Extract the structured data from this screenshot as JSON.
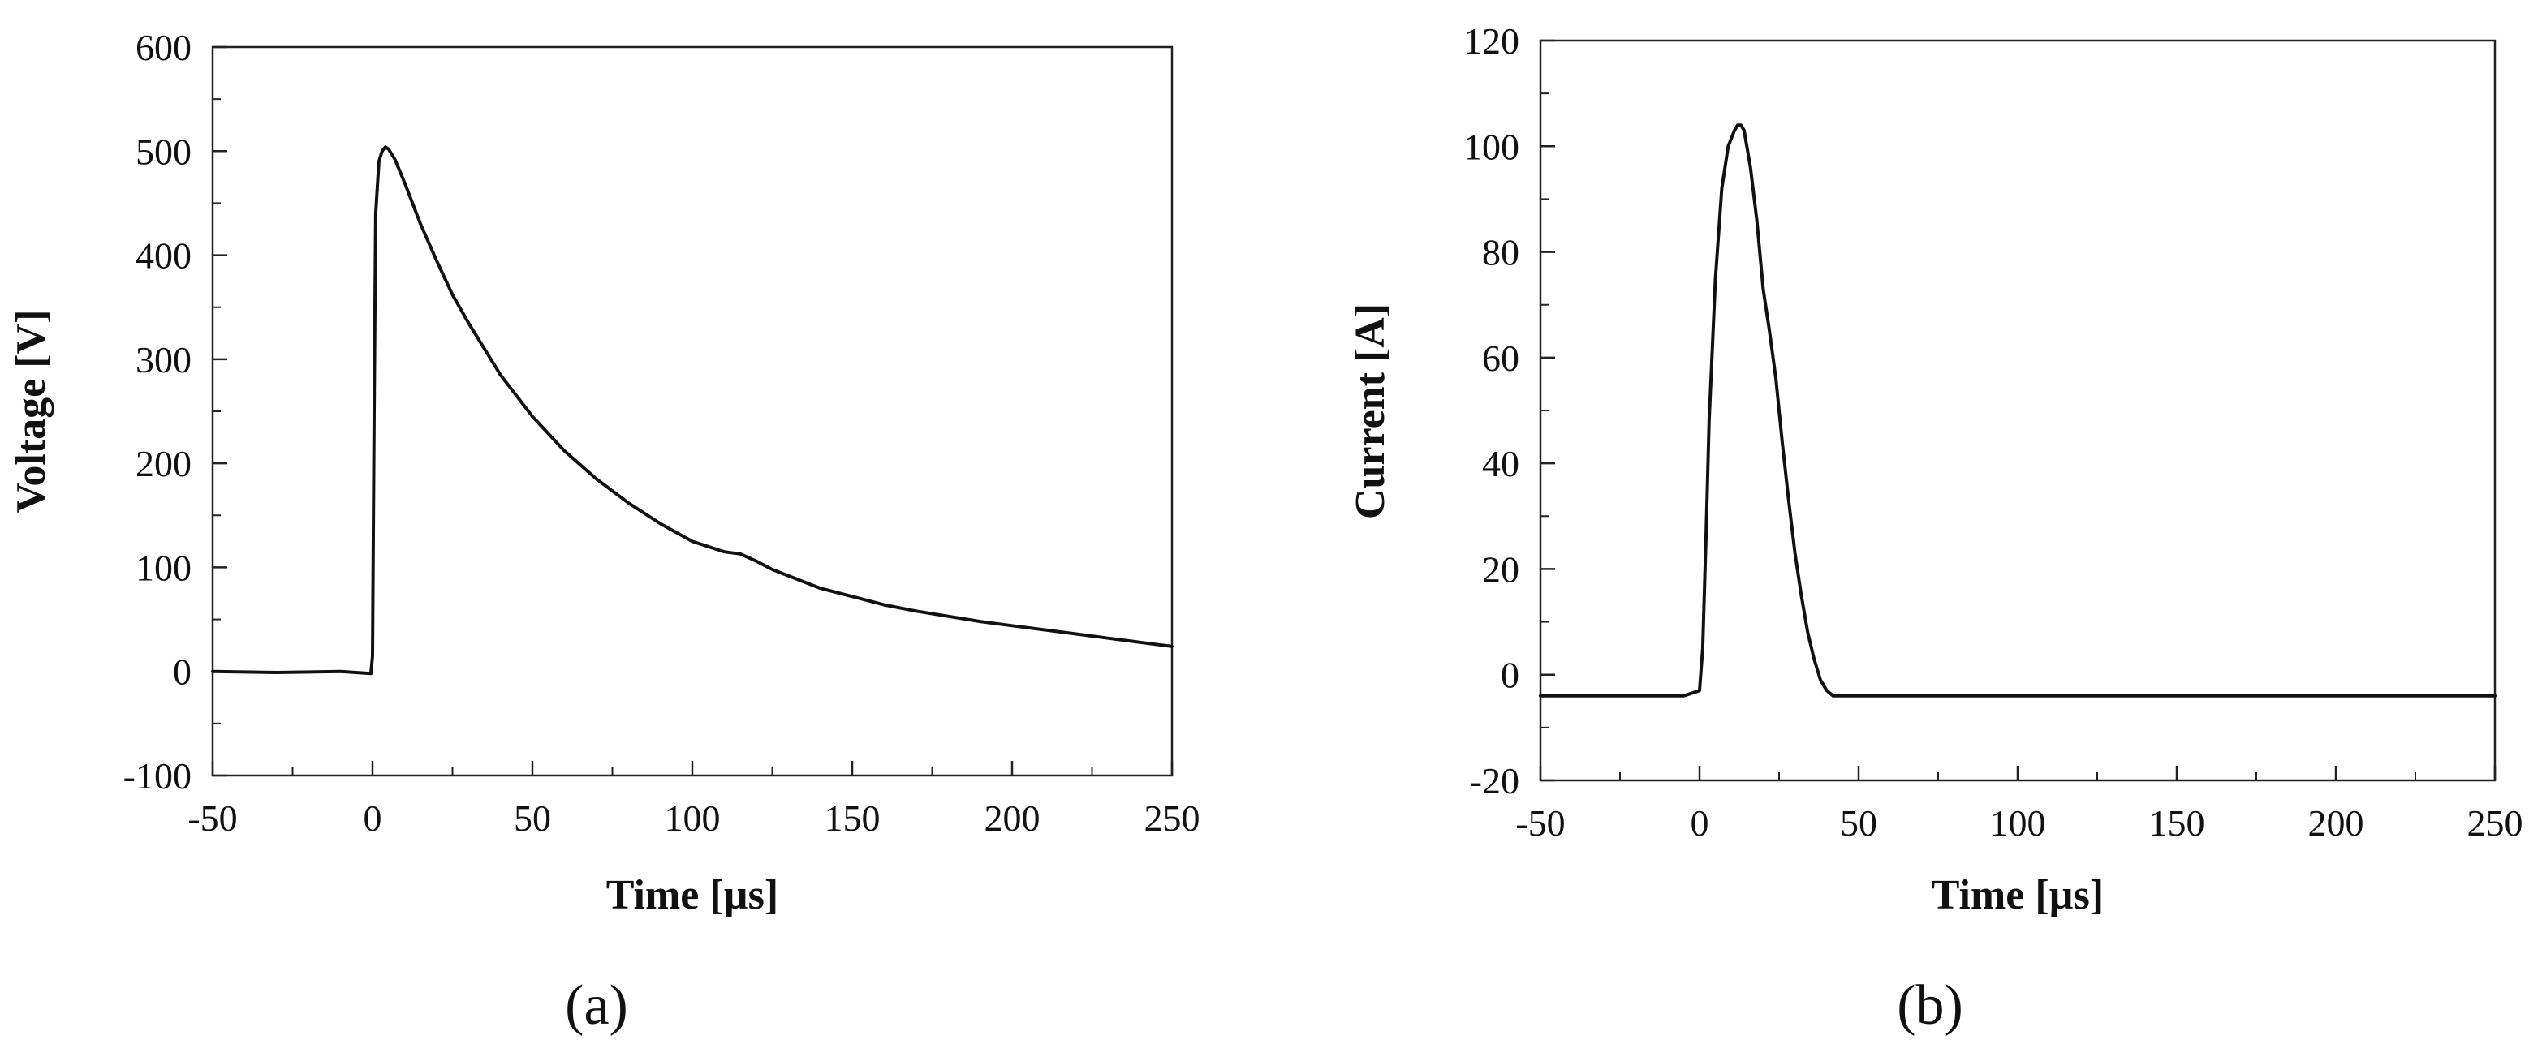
{
  "chart_data": [
    {
      "type": "line",
      "panel_label": "(a)",
      "title": "",
      "xlabel": "Time [µs]",
      "ylabel": "Voltage [V]",
      "xlim": [
        -50,
        250
      ],
      "ylim": [
        -100,
        600
      ],
      "xticks": [
        -50,
        0,
        50,
        100,
        150,
        200,
        250
      ],
      "yticks": [
        -100,
        0,
        100,
        200,
        300,
        400,
        500,
        600
      ],
      "grid": false,
      "legend": "none",
      "line_color": "#111111",
      "series": [
        {
          "x": [
            -50,
            -30,
            -10,
            -0.5,
            0,
            0.5,
            1,
            2,
            3,
            4,
            5,
            7,
            10,
            15,
            20,
            25,
            30,
            40,
            50,
            60,
            70,
            80,
            90,
            100,
            105,
            110,
            115,
            120,
            125,
            130,
            140,
            150,
            160,
            170,
            180,
            190,
            200,
            210,
            220,
            230,
            240,
            250
          ],
          "y": [
            0,
            -1,
            0,
            -2,
            15,
            250,
            440,
            490,
            500,
            504,
            502,
            492,
            470,
            430,
            395,
            362,
            335,
            285,
            245,
            212,
            185,
            162,
            142,
            125,
            120,
            115,
            113,
            106,
            98,
            92,
            80,
            72,
            64,
            58,
            53,
            48,
            44,
            40,
            36,
            32,
            28,
            24
          ]
        }
      ]
    },
    {
      "type": "line",
      "panel_label": "(b)",
      "title": "",
      "xlabel": "Time [µs]",
      "ylabel": "Current [A]",
      "xlim": [
        -50,
        250
      ],
      "ylim": [
        -20,
        120
      ],
      "xticks": [
        -50,
        0,
        50,
        100,
        150,
        200,
        250
      ],
      "yticks": [
        -20,
        0,
        20,
        40,
        60,
        80,
        100,
        120
      ],
      "grid": false,
      "legend": "none",
      "line_color": "#111111",
      "series": [
        {
          "x": [
            -50,
            -25,
            -5,
            0,
            1,
            2,
            3,
            5,
            7,
            9,
            11,
            12,
            13,
            14,
            16,
            18,
            20,
            22,
            24,
            26,
            28,
            30,
            32,
            34,
            36,
            38,
            40,
            42,
            50,
            100,
            150,
            200,
            250
          ],
          "y": [
            -4,
            -4,
            -4,
            -3,
            5,
            25,
            48,
            75,
            92,
            100,
            103,
            104,
            104,
            103,
            96,
            86,
            73,
            65,
            56,
            44,
            33,
            23,
            15,
            8,
            3,
            -1,
            -3,
            -4,
            -4,
            -4,
            -4,
            -4,
            -4
          ]
        }
      ]
    }
  ]
}
